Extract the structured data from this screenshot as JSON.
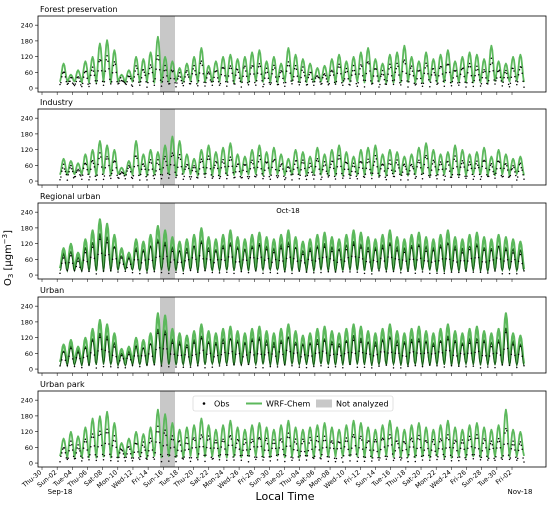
{
  "figure": {
    "ylabel": "O$_3$ [µgm$^{-3}$]",
    "ylabel_main": "O",
    "ylabel_sub": "3",
    "ylabel_unit": " [μgm",
    "ylabel_sup": "−3",
    "ylabel_end": "]",
    "xlabel": "Local Time",
    "month_left": "Sep-18",
    "month_mid": "Oct-18",
    "month_right": "Nov-18"
  },
  "colors": {
    "obs": "#000000",
    "wrf_light": "#5cb85c",
    "wrf_dark": "#1a5e1a",
    "not_analyzed": "#c8c8c8"
  },
  "legend": {
    "obs": "Obs",
    "wrf": "WRF-Chem",
    "not_analyzed": "Not analyzed",
    "placement": "top-center of bottom panel"
  },
  "chart_data": {
    "type": "line",
    "x_range": [
      "2018-09-29",
      "2018-11-03"
    ],
    "x_tick_labels": [
      "Thu-30",
      "Sun-02",
      "Tue-04",
      "Thu-06",
      "Sat-08",
      "Mon-10",
      "Wed-12",
      "Fri-14",
      "Sun-16",
      "Tue-18",
      "Thu-20",
      "Sat-22",
      "Mon-24",
      "Wed-26",
      "Fri-28",
      "Sun-30",
      "Tue-02",
      "Thu-04",
      "Sat-06",
      "Mon-08",
      "Wed-10",
      "Fri-12",
      "Sun-14",
      "Tue-16",
      "Thu-18",
      "Sat-20",
      "Mon-22",
      "Wed-24",
      "Fri-26",
      "Sun-28",
      "Tue-30",
      "Fri-02"
    ],
    "y_ticks": [
      0,
      60,
      120,
      180,
      240
    ],
    "ylim": [
      -15,
      275
    ],
    "not_analyzed_span": [
      "2018-09-15",
      "2018-09-17"
    ],
    "panels": [
      {
        "title": "Forest preservation",
        "series": [
          "Obs",
          "WRF-Chem"
        ],
        "obs_style": "sparse"
      },
      {
        "title": "Industry",
        "series": [
          "Obs",
          "WRF-Chem"
        ],
        "obs_style": "sparse"
      },
      {
        "title": "Regional urban",
        "series": [
          "Obs",
          "WRF-Chem"
        ],
        "obs_style": "dense"
      },
      {
        "title": "Urban",
        "series": [
          "Obs",
          "WRF-Chem"
        ],
        "obs_style": "dense"
      },
      {
        "title": "Urban park",
        "series": [
          "Obs",
          "WRF-Chem"
        ],
        "obs_style": "sparse"
      }
    ],
    "daily_peaks": {
      "Forest preservation": [
        110,
        60,
        80,
        120,
        140,
        200,
        215,
        170,
        60,
        80,
        140,
        130,
        160,
        230,
        140,
        120,
        90,
        110,
        140,
        180,
        100,
        120,
        140,
        150,
        130,
        140,
        160,
        170,
        120,
        140,
        110,
        180,
        150,
        130,
        110,
        90,
        100,
        130,
        150,
        120,
        140,
        160,
        180,
        130,
        110,
        150,
        160,
        190,
        140,
        120,
        160,
        130,
        150,
        170,
        120,
        140,
        160,
        150,
        130,
        190,
        120,
        110,
        140,
        150
      ],
      "Industry": [
        100,
        90,
        80,
        120,
        140,
        180,
        160,
        140,
        60,
        90,
        180,
        120,
        140,
        130,
        160,
        200,
        180,
        120,
        100,
        140,
        160,
        130,
        150,
        170,
        120,
        110,
        140,
        160,
        130,
        150,
        120,
        100,
        140,
        130,
        110,
        150,
        120,
        140,
        160,
        130,
        110,
        140,
        150,
        160,
        120,
        140,
        130,
        110,
        120,
        150,
        170,
        140,
        120,
        130,
        160,
        140,
        120,
        130,
        150,
        110,
        140,
        120,
        100,
        110
      ],
      "Regional urban": [
        120,
        140,
        100,
        160,
        200,
        250,
        230,
        180,
        120,
        100,
        160,
        150,
        180,
        220,
        200,
        170,
        150,
        160,
        180,
        210,
        170,
        160,
        180,
        200,
        170,
        160,
        180,
        190,
        170,
        160,
        180,
        200,
        170,
        150,
        160,
        180,
        190,
        170,
        160,
        180,
        200,
        190,
        170,
        160,
        180,
        200,
        170,
        160,
        180,
        190,
        170,
        160,
        180,
        200,
        170,
        160,
        180,
        190,
        170,
        160,
        180,
        170,
        160,
        150
      ],
      "Urban": [
        110,
        130,
        100,
        140,
        180,
        220,
        200,
        160,
        90,
        100,
        140,
        130,
        160,
        250,
        240,
        180,
        160,
        150,
        170,
        200,
        170,
        160,
        180,
        190,
        170,
        160,
        180,
        190,
        170,
        160,
        180,
        200,
        170,
        150,
        160,
        180,
        190,
        170,
        160,
        180,
        200,
        190,
        170,
        160,
        180,
        200,
        170,
        160,
        180,
        190,
        170,
        160,
        180,
        200,
        170,
        160,
        180,
        190,
        170,
        160,
        180,
        250,
        160,
        150
      ],
      "Urban park": [
        110,
        140,
        120,
        160,
        200,
        210,
        230,
        180,
        90,
        110,
        140,
        130,
        160,
        240,
        220,
        180,
        150,
        160,
        170,
        200,
        170,
        150,
        170,
        190,
        160,
        150,
        170,
        180,
        160,
        150,
        170,
        190,
        160,
        150,
        160,
        170,
        180,
        160,
        150,
        170,
        190,
        180,
        160,
        150,
        170,
        190,
        160,
        150,
        170,
        180,
        160,
        150,
        170,
        190,
        160,
        150,
        170,
        180,
        160,
        150,
        170,
        240,
        150,
        140
      ]
    }
  }
}
